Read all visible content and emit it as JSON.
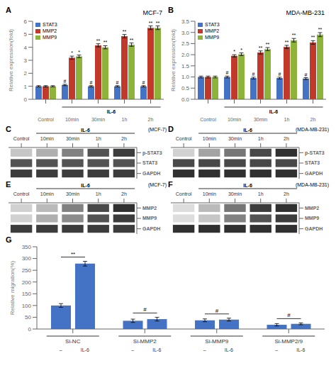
{
  "chart_data": [
    {
      "type": "bar",
      "title": "MCF-7",
      "ylabel": "Relative expression(fold)",
      "categories": [
        "Control",
        "10min",
        "30min",
        "1h",
        "2h"
      ],
      "series": [
        {
          "name": "STAT3",
          "color": "#4472C4",
          "values": [
            1.0,
            1.1,
            1.0,
            1.0,
            1.0
          ],
          "errors": [
            0.05,
            0.05,
            0.05,
            0.05,
            0.05
          ]
        },
        {
          "name": "MMP2",
          "color": "#C0392B",
          "values": [
            1.0,
            3.2,
            4.15,
            4.85,
            5.5
          ],
          "errors": [
            0.05,
            0.12,
            0.12,
            0.13,
            0.14
          ]
        },
        {
          "name": "MMP9",
          "color": "#8EB33B",
          "values": [
            1.0,
            3.3,
            4.0,
            4.2,
            5.5
          ],
          "errors": [
            0.05,
            0.1,
            0.12,
            0.13,
            0.14
          ]
        }
      ],
      "ylim": [
        0,
        6
      ],
      "yticks": [
        0,
        1,
        2,
        3,
        4,
        5,
        6
      ],
      "legend": "upper left",
      "annotations": [
        {
          "text": "A"
        },
        {
          "text": "IL-6",
          "from": "10min",
          "to": "2h"
        },
        {
          "text": "#",
          "series": "STAT3",
          "category": "10min"
        },
        {
          "text": "#",
          "series": "STAT3",
          "category": "30min"
        },
        {
          "text": "#",
          "series": "STAT3",
          "category": "1h"
        },
        {
          "text": "#",
          "series": "STAT3",
          "category": "2h"
        },
        {
          "text": "*",
          "series": "MMP2",
          "category": "10min"
        },
        {
          "text": "**",
          "series": "MMP2",
          "category": "30min"
        },
        {
          "text": "**",
          "series": "MMP2",
          "category": "1h"
        },
        {
          "text": "**",
          "series": "MMP2",
          "category": "2h"
        },
        {
          "text": "*",
          "series": "MMP9",
          "category": "10min"
        },
        {
          "text": "**",
          "series": "MMP9",
          "category": "30min"
        },
        {
          "text": "**",
          "series": "MMP9",
          "category": "1h"
        },
        {
          "text": "**",
          "series": "MMP9",
          "category": "2h"
        }
      ]
    },
    {
      "type": "bar",
      "title": "MDA-MB-231",
      "ylabel": "Relative expression(fold)",
      "categories": [
        "Control",
        "10min",
        "30min",
        "1h",
        "2h"
      ],
      "series": [
        {
          "name": "STAT3",
          "color": "#4472C4",
          "values": [
            1.0,
            1.0,
            0.95,
            0.95,
            0.93
          ],
          "errors": [
            0.04,
            0.04,
            0.04,
            0.04,
            0.04
          ]
        },
        {
          "name": "MMP2",
          "color": "#C0392B",
          "values": [
            1.0,
            1.95,
            2.1,
            2.35,
            2.55
          ],
          "errors": [
            0.04,
            0.05,
            0.07,
            0.07,
            0.08
          ]
        },
        {
          "name": "MMP9",
          "color": "#8EB33B",
          "values": [
            1.0,
            2.02,
            2.25,
            2.65,
            2.9
          ],
          "errors": [
            0.04,
            0.06,
            0.07,
            0.08,
            0.09
          ]
        }
      ],
      "ylim": [
        0,
        3.5
      ],
      "yticks": [
        {
          "value": 0,
          "label": "0.0"
        },
        0.5,
        {
          "value": 1,
          "label": "1.0"
        },
        1.5,
        {
          "value": 2,
          "label": "2.0"
        },
        2.5,
        {
          "value": 3,
          "label": "3.0"
        },
        3.5
      ],
      "legend": "upper left",
      "annotations": [
        {
          "text": "B"
        },
        {
          "text": "IL-6",
          "from": "10min",
          "to": "2h"
        },
        {
          "text": "#",
          "series": "STAT3",
          "category": "10min"
        },
        {
          "text": "#",
          "series": "STAT3",
          "category": "30min"
        },
        {
          "text": "#",
          "series": "STAT3",
          "category": "1h"
        },
        {
          "text": "#",
          "series": "STAT3",
          "category": "2h"
        },
        {
          "text": "*",
          "series": "MMP2",
          "category": "10min"
        },
        {
          "text": "**",
          "series": "MMP2",
          "category": "30min"
        },
        {
          "text": "**",
          "series": "MMP2",
          "category": "1h"
        },
        {
          "text": "**",
          "series": "MMP2",
          "category": "2h"
        },
        {
          "text": "*",
          "series": "MMP9",
          "category": "10min"
        },
        {
          "text": "**",
          "series": "MMP9",
          "category": "30min"
        },
        {
          "text": "**",
          "series": "MMP9",
          "category": "1h"
        },
        {
          "text": "**",
          "series": "MMP9",
          "category": "2h"
        }
      ]
    },
    {
      "type": "heatmap",
      "subtitle": "(MCF-7)",
      "categories": [
        "Control",
        "10min",
        "30min",
        "1h",
        "2h"
      ],
      "y_categories": [
        "p-STAT3",
        "STAT3",
        "GAPDH"
      ],
      "cells": [
        [
          0.25,
          0.35,
          0.55,
          0.75,
          0.85
        ],
        [
          0.75,
          0.75,
          0.75,
          0.75,
          0.75
        ],
        [
          0.85,
          0.85,
          0.85,
          0.85,
          0.85
        ]
      ],
      "color": "#1a1a1a",
      "annotations": [
        {
          "text": "C"
        },
        {
          "text": "IL-6",
          "from": "10min",
          "to": "2h"
        }
      ]
    },
    {
      "type": "heatmap",
      "subtitle": "(MDA-MB-231)",
      "categories": [
        "Control",
        "10min",
        "30min",
        "1h",
        "2h"
      ],
      "y_categories": [
        "p-STAT3",
        "STAT3",
        "GAPDH"
      ],
      "cells": [
        [
          0.2,
          0.4,
          0.6,
          0.8,
          0.9
        ],
        [
          0.8,
          0.8,
          0.8,
          0.8,
          0.8
        ],
        [
          0.9,
          0.9,
          0.9,
          0.9,
          0.9
        ]
      ],
      "color": "#1a1a1a",
      "annotations": [
        {
          "text": "D"
        },
        {
          "text": "IL-6",
          "from": "10min",
          "to": "2h"
        }
      ]
    },
    {
      "type": "heatmap",
      "subtitle": "(MCF-7)",
      "categories": [
        "Control",
        "10min",
        "30min",
        "1h",
        "2h"
      ],
      "y_categories": [
        "MMP2",
        "MMP9",
        "GAPDH"
      ],
      "cells": [
        [
          0.2,
          0.3,
          0.55,
          0.8,
          0.9
        ],
        [
          0.2,
          0.35,
          0.5,
          0.75,
          0.85
        ],
        [
          0.85,
          0.85,
          0.85,
          0.85,
          0.85
        ]
      ],
      "color": "#1a1a1a",
      "annotations": [
        {
          "text": "E"
        },
        {
          "text": "IL-6",
          "from": "10min",
          "to": "2h"
        }
      ]
    },
    {
      "type": "heatmap",
      "subtitle": "(MDA-MB-231)",
      "categories": [
        "Control",
        "10min",
        "30min",
        "1h",
        "2h"
      ],
      "y_categories": [
        "MMP2",
        "MMP9",
        "GAPDH"
      ],
      "cells": [
        [
          0.15,
          0.3,
          0.6,
          0.85,
          0.9
        ],
        [
          0.15,
          0.25,
          0.55,
          0.75,
          0.85
        ],
        [
          0.9,
          0.9,
          0.9,
          0.9,
          0.9
        ]
      ],
      "color": "#1a1a1a",
      "annotations": [
        {
          "text": "F"
        },
        {
          "text": "IL-6",
          "from": "10min",
          "to": "2h"
        }
      ]
    },
    {
      "type": "bar",
      "ylabel": "Relative migration(%)",
      "categories": [
        "Si-NC",
        "Si-MMP2",
        "Si-MMP9",
        "Si-MMP2/9"
      ],
      "series": [
        {
          "name": "–",
          "color": "#4472C4",
          "values": [
            100,
            35,
            37,
            18
          ],
          "errors": [
            8,
            7,
            6,
            5
          ]
        },
        {
          "name": "IL-6",
          "color": "#4472C4",
          "values": [
            278,
            42,
            40,
            22
          ],
          "errors": [
            10,
            8,
            6,
            4
          ]
        }
      ],
      "ylim": [
        0,
        350
      ],
      "yticks": [
        0,
        50,
        100,
        150,
        200,
        250,
        300,
        350
      ],
      "annotations": [
        {
          "text": "G"
        },
        {
          "text": "**",
          "category": "Si-NC"
        },
        {
          "text": "#",
          "category": "Si-MMP2"
        },
        {
          "text": "#",
          "category": "Si-MMP9"
        },
        {
          "text": "#",
          "category": "Si-MMP2/9"
        }
      ]
    }
  ]
}
